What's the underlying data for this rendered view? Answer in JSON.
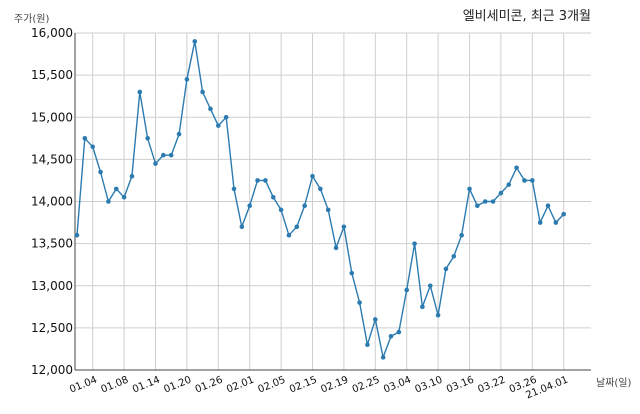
{
  "chart_data": {
    "type": "line",
    "title": "엘비세미콘, 최근 3개월",
    "xlabel": "날짜(일)",
    "ylabel": "주가(원)",
    "ylim": [
      12000,
      16000
    ],
    "yticks": [
      12000,
      12500,
      13000,
      13500,
      14000,
      14500,
      15000,
      15500,
      16000
    ],
    "ytick_labels": [
      "12,000",
      "12,500",
      "13,000",
      "13,500",
      "14,000",
      "14,500",
      "15,000",
      "15,500",
      "16,000"
    ],
    "xtick_labels": [
      "01.04",
      "01.08",
      "01.14",
      "01.20",
      "01.26",
      "02.01",
      "02.05",
      "02.15",
      "02.19",
      "02.25",
      "03.04",
      "03.10",
      "03.16",
      "03.22",
      "03.26",
      "21.04.01"
    ],
    "xtick_index": [
      2,
      6,
      10,
      14,
      18,
      22,
      26,
      30,
      34,
      38,
      42,
      46,
      50,
      54,
      58,
      62
    ],
    "grid": true,
    "line_color": "#2b7bb0",
    "series": [
      {
        "values": [
          13600,
          14750,
          14650,
          14350,
          14000,
          14150,
          14050,
          14300,
          15300,
          14750,
          14450,
          14550,
          14550,
          14800,
          15450,
          15900,
          15300,
          15100,
          14900,
          15000,
          14150,
          13700,
          13950,
          14250,
          14250,
          14050,
          13900,
          13600,
          13700,
          13950,
          14300,
          14150,
          13900,
          13450,
          13700,
          13150,
          12800,
          12300,
          12600,
          12150,
          12400,
          12450,
          12950,
          13500,
          12750,
          13000,
          12650,
          13200,
          13350,
          13600,
          14150,
          13950,
          14000,
          14000,
          14100,
          14200,
          14400,
          14250,
          14250,
          13750,
          13950,
          13750,
          13850
        ]
      }
    ]
  }
}
